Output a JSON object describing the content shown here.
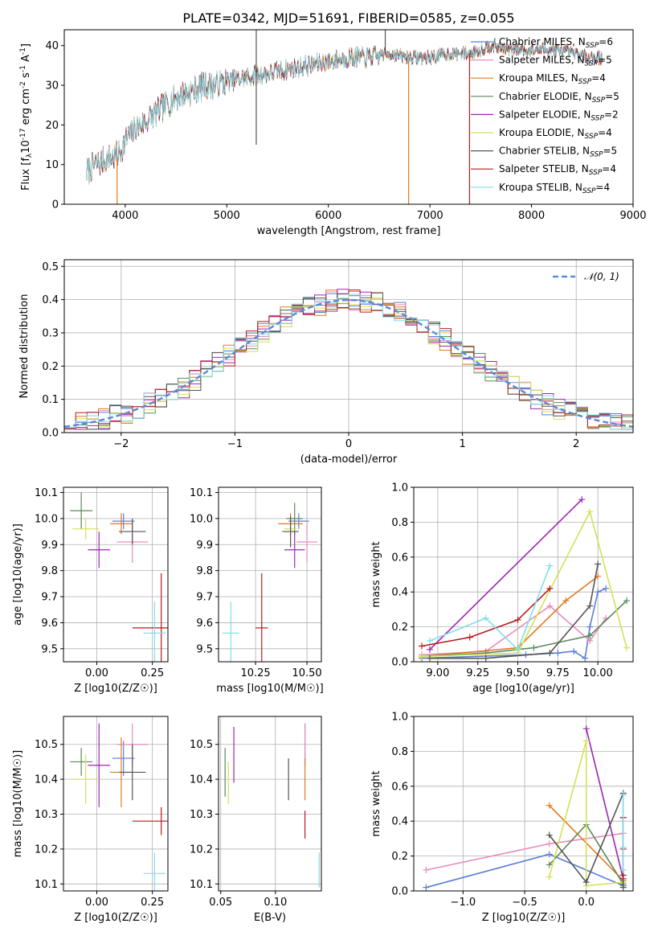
{
  "figure_title": "PLATE=0342, MJD=51691, FIBERID=0585, z=0.055",
  "colors": {
    "Chabrier MILES": "#5b7fd6",
    "Salpeter MILES": "#e98bbd",
    "Kroupa MILES": "#e07a22",
    "Chabrier ELODIE": "#5a8a5a",
    "Salpeter ELODIE": "#9c27b0",
    "Kroupa ELODIE": "#d4e157",
    "Chabrier STELIB": "#555555",
    "Salpeter STELIB": "#b71c1c",
    "Kroupa STELIB": "#80deea"
  },
  "chart_data": [
    {
      "id": "spectrum",
      "type": "line",
      "title": "PLATE=0342, MJD=51691, FIBERID=0585, z=0.055",
      "xlabel": "wavelength [Angstrom, rest frame]",
      "ylabel_parts": [
        "Flux [f",
        "λ",
        "10",
        "-17",
        " erg cm",
        "-2",
        " s",
        "-1",
        " A",
        "-1",
        "]"
      ],
      "xlim": [
        3400,
        9000
      ],
      "ylim": [
        0,
        44
      ],
      "xticks": [
        "4000",
        "5000",
        "6000",
        "7000",
        "8000",
        "9000"
      ],
      "yticks": [
        "0",
        "10",
        "20",
        "30",
        "40"
      ],
      "legend_position": "top-right",
      "legend": [
        {
          "name": "Chabrier MILES",
          "nssp": "6"
        },
        {
          "name": "Salpeter MILES",
          "nssp": "5"
        },
        {
          "name": "Kroupa MILES",
          "nssp": "4"
        },
        {
          "name": "Chabrier ELODIE",
          "nssp": "5"
        },
        {
          "name": "Salpeter ELODIE",
          "nssp": "2"
        },
        {
          "name": "Kroupa ELODIE",
          "nssp": "4"
        },
        {
          "name": "Chabrier STELIB",
          "nssp": "5"
        },
        {
          "name": "Salpeter STELIB",
          "nssp": "4"
        },
        {
          "name": "Kroupa STELIB",
          "nssp": "4"
        }
      ],
      "trend": {
        "x": [
          3620,
          3700,
          3800,
          3900,
          3950,
          4000,
          4100,
          4200,
          4300,
          4400,
          4500,
          4600,
          4700,
          4800,
          4900,
          5000,
          5200,
          5400,
          5600,
          5800,
          6000,
          6200,
          6400,
          6600,
          6800,
          7000,
          7200,
          7400,
          7600,
          7800,
          8000,
          8200,
          8400,
          8600,
          8700
        ],
        "y": [
          8,
          10,
          11,
          12,
          13,
          16,
          19,
          21,
          23,
          25,
          27,
          28,
          29,
          30,
          30,
          31,
          32,
          33,
          34,
          35,
          36,
          37,
          37,
          38,
          37,
          37,
          38,
          38,
          40,
          39,
          39,
          39,
          38,
          37,
          37
        ]
      },
      "spikes": [
        {
          "x": 3920,
          "y0": 0,
          "y1": 12,
          "series": "Kroupa MILES"
        },
        {
          "x": 5290,
          "y0": 15,
          "y1": 44,
          "series": "Chabrier STELIB"
        },
        {
          "x": 6560,
          "y0": 38,
          "y1": 44,
          "series": "Chabrier STELIB"
        },
        {
          "x": 6790,
          "y0": 0,
          "y1": 36,
          "series": "Kroupa MILES"
        },
        {
          "x": 7390,
          "y0": 0,
          "y1": 38,
          "series": "Salpeter STELIB"
        }
      ]
    },
    {
      "id": "residuals",
      "type": "line",
      "xlabel": "(data-model)/error",
      "ylabel": "Normed distribution",
      "xlim": [
        -2.5,
        2.5
      ],
      "ylim": [
        0,
        0.52
      ],
      "xticks": [
        "−2",
        "−1",
        "0",
        "1",
        "2"
      ],
      "yticks": [
        "0.0",
        "0.1",
        "0.2",
        "0.3",
        "0.4",
        "0.5"
      ],
      "legend_position": "top-right",
      "legend": [
        {
          "name": "𝒩(0, 1)"
        }
      ],
      "grid": true
    },
    {
      "id": "age_vs_Z",
      "type": "scatter",
      "xlabel": "Z [log10(Z/Z☉)]",
      "ylabel": "age [log10(age/yr)]",
      "xlim": [
        -0.15,
        0.32
      ],
      "ylim": [
        9.45,
        10.12
      ],
      "xticks": [
        "0.00",
        "0.25"
      ],
      "yticks": [
        "9.5",
        "9.6",
        "9.7",
        "9.8",
        "9.9",
        "10.0",
        "10.1"
      ],
      "grid": true,
      "points": [
        {
          "series": "Chabrier MILES",
          "x": 0.12,
          "y": 9.99,
          "xerr": 0.05,
          "yerr": 0.03
        },
        {
          "series": "Salpeter MILES",
          "x": 0.16,
          "y": 9.91,
          "xerr": 0.07,
          "yerr": 0.08
        },
        {
          "series": "Kroupa MILES",
          "x": 0.11,
          "y": 9.98,
          "xerr": 0.05,
          "yerr": 0.04
        },
        {
          "series": "Chabrier ELODIE",
          "x": -0.07,
          "y": 10.03,
          "xerr": 0.05,
          "yerr": 0.07
        },
        {
          "series": "Salpeter ELODIE",
          "x": 0.01,
          "y": 9.88,
          "xerr": 0.05,
          "yerr": 0.07
        },
        {
          "series": "Kroupa ELODIE",
          "x": -0.05,
          "y": 9.96,
          "xerr": 0.06,
          "yerr": 0.04
        },
        {
          "series": "Chabrier STELIB",
          "x": 0.16,
          "y": 9.95,
          "xerr": 0.06,
          "yerr": 0.05
        },
        {
          "series": "Salpeter STELIB",
          "x": 0.29,
          "y": 9.58,
          "xerr": 0.13,
          "yerr": 0.21
        },
        {
          "series": "Kroupa STELIB",
          "x": 0.26,
          "y": 9.56,
          "xerr": 0.05,
          "yerr": 0.12
        }
      ]
    },
    {
      "id": "age_vs_mass",
      "type": "scatter",
      "xlabel": "mass [log10(M/M☉)]",
      "xlim": [
        10.07,
        10.57
      ],
      "ylim": [
        9.45,
        10.12
      ],
      "xticks": [
        "10.25",
        "10.50"
      ],
      "yticks": [
        "9.5",
        "9.6",
        "9.7",
        "9.8",
        "9.9",
        "10.0",
        "10.1"
      ],
      "grid": true,
      "points": [
        {
          "series": "Chabrier MILES",
          "x": 10.46,
          "y": 9.99,
          "xerr": 0.05,
          "yerr": 0.03
        },
        {
          "series": "Salpeter MILES",
          "x": 10.5,
          "y": 9.91,
          "xerr": 0.05,
          "yerr": 0.08
        },
        {
          "series": "Kroupa MILES",
          "x": 10.42,
          "y": 9.98,
          "xerr": 0.06,
          "yerr": 0.04
        },
        {
          "series": "Chabrier ELODIE",
          "x": 10.44,
          "y": 10.0,
          "xerr": 0.04,
          "yerr": 0.06
        },
        {
          "series": "Salpeter ELODIE",
          "x": 10.44,
          "y": 9.88,
          "xerr": 0.05,
          "yerr": 0.07
        },
        {
          "series": "Kroupa ELODIE",
          "x": 10.42,
          "y": 9.96,
          "xerr": 0.03,
          "yerr": 0.05
        },
        {
          "series": "Chabrier STELIB",
          "x": 10.42,
          "y": 9.95,
          "xerr": 0.04,
          "yerr": 0.06
        },
        {
          "series": "Salpeter STELIB",
          "x": 10.28,
          "y": 9.58,
          "xerr": 0.03,
          "yerr": 0.21
        },
        {
          "series": "Kroupa STELIB",
          "x": 10.13,
          "y": 9.56,
          "xerr": 0.04,
          "yerr": 0.12
        }
      ]
    },
    {
      "id": "weight_vs_age",
      "type": "line",
      "xlabel": "age [log10(age/yr)]",
      "ylabel": "mass weight",
      "xlim": [
        8.85,
        10.22
      ],
      "ylim": [
        0,
        1
      ],
      "xticks": [
        "9.00",
        "9.25",
        "9.50",
        "9.75",
        "10.00"
      ],
      "yticks": [
        "0.0",
        "0.2",
        "0.4",
        "0.6",
        "0.8",
        "1.0"
      ],
      "grid": true,
      "series": [
        {
          "name": "Chabrier MILES",
          "x": [
            8.9,
            9.55,
            9.75,
            9.85,
            9.92,
            9.95,
            10.0,
            10.05
          ],
          "y": [
            0.02,
            0.04,
            0.05,
            0.06,
            0.02,
            0.2,
            0.4,
            0.42
          ]
        },
        {
          "name": "Salpeter MILES",
          "x": [
            8.9,
            9.3,
            9.7,
            9.95,
            10.05
          ],
          "y": [
            0.04,
            0.06,
            0.32,
            0.12,
            0.25
          ]
        },
        {
          "name": "Kroupa MILES",
          "x": [
            8.9,
            9.5,
            9.8,
            10.0
          ],
          "y": [
            0.03,
            0.08,
            0.35,
            0.49
          ]
        },
        {
          "name": "Chabrier ELODIE",
          "x": [
            8.9,
            9.3,
            9.6,
            9.95,
            10.18
          ],
          "y": [
            0.03,
            0.05,
            0.08,
            0.15,
            0.35
          ]
        },
        {
          "name": "Salpeter ELODIE",
          "x": [
            8.95,
            9.9
          ],
          "y": [
            0.07,
            0.93
          ]
        },
        {
          "name": "Kroupa ELODIE",
          "x": [
            8.9,
            9.5,
            9.95,
            10.18
          ],
          "y": [
            0.03,
            0.05,
            0.86,
            0.08
          ]
        },
        {
          "name": "Chabrier STELIB",
          "x": [
            8.95,
            9.3,
            9.7,
            9.95,
            10.0
          ],
          "y": [
            0.02,
            0.02,
            0.05,
            0.32,
            0.56
          ]
        },
        {
          "name": "Salpeter STELIB",
          "x": [
            8.9,
            9.2,
            9.5,
            9.7
          ],
          "y": [
            0.09,
            0.14,
            0.24,
            0.42
          ]
        },
        {
          "name": "Kroupa STELIB",
          "x": [
            8.95,
            9.3,
            9.5,
            9.7
          ],
          "y": [
            0.12,
            0.25,
            0.07,
            0.55
          ]
        }
      ]
    },
    {
      "id": "mass_vs_Z",
      "type": "scatter",
      "xlabel": "Z [log10(Z/Z☉)]",
      "ylabel": "mass [log10(M/M☉)]",
      "xlim": [
        -0.15,
        0.32
      ],
      "ylim": [
        10.08,
        10.58
      ],
      "xticks": [
        "0.00",
        "0.25"
      ],
      "yticks": [
        "10.1",
        "10.2",
        "10.3",
        "10.4",
        "10.5"
      ],
      "grid": true,
      "points": [
        {
          "series": "Chabrier MILES",
          "x": 0.12,
          "y": 10.46,
          "xerr": 0.05,
          "yerr": 0.05
        },
        {
          "series": "Salpeter MILES",
          "x": 0.16,
          "y": 10.5,
          "xerr": 0.07,
          "yerr": 0.06
        },
        {
          "series": "Kroupa MILES",
          "x": 0.11,
          "y": 10.42,
          "xerr": 0.05,
          "yerr": 0.1
        },
        {
          "series": "Chabrier ELODIE",
          "x": -0.07,
          "y": 10.45,
          "xerr": 0.05,
          "yerr": 0.04
        },
        {
          "series": "Salpeter ELODIE",
          "x": 0.01,
          "y": 10.44,
          "xerr": 0.05,
          "yerr": 0.12
        },
        {
          "series": "Kroupa ELODIE",
          "x": -0.05,
          "y": 10.4,
          "xerr": 0.06,
          "yerr": 0.07
        },
        {
          "series": "Chabrier STELIB",
          "x": 0.16,
          "y": 10.42,
          "xerr": 0.06,
          "yerr": 0.08
        },
        {
          "series": "Salpeter STELIB",
          "x": 0.29,
          "y": 10.28,
          "xerr": 0.13,
          "yerr": 0.04
        },
        {
          "series": "Kroupa STELIB",
          "x": 0.26,
          "y": 10.13,
          "xerr": 0.05,
          "yerr": 0.06
        }
      ]
    },
    {
      "id": "mass_vs_EBV",
      "type": "scatter",
      "xlabel": "E(B-V)",
      "xlim": [
        0.048,
        0.142
      ],
      "ylim": [
        10.08,
        10.58
      ],
      "xticks": [
        "0.05",
        "0.10"
      ],
      "yticks": [
        "10.1",
        "10.2",
        "10.3",
        "10.4",
        "10.5"
      ],
      "grid": true,
      "points": [
        {
          "series": "Chabrier MILES",
          "x": 0.127,
          "y": 10.5,
          "yerr": 0.06
        },
        {
          "series": "Salpeter MILES",
          "x": 0.127,
          "y": 10.5,
          "yerr": 0.06
        },
        {
          "series": "Kroupa MILES",
          "x": 0.127,
          "y": 10.4,
          "yerr": 0.06
        },
        {
          "series": "Chabrier ELODIE",
          "x": 0.054,
          "y": 10.42,
          "yerr": 0.07
        },
        {
          "series": "Salpeter ELODIE",
          "x": 0.062,
          "y": 10.47,
          "yerr": 0.08
        },
        {
          "series": "Kroupa ELODIE",
          "x": 0.057,
          "y": 10.39,
          "yerr": 0.06
        },
        {
          "series": "Chabrier STELIB",
          "x": 0.112,
          "y": 10.4,
          "yerr": 0.06
        },
        {
          "series": "Salpeter STELIB",
          "x": 0.127,
          "y": 10.27,
          "yerr": 0.04
        },
        {
          "series": "Kroupa STELIB",
          "x": 0.14,
          "y": 10.14,
          "yerr": 0.05
        }
      ]
    },
    {
      "id": "weight_vs_Z",
      "type": "line",
      "xlabel": "Z [log10(Z/Z☉)]",
      "ylabel": "mass weight",
      "xlim": [
        -1.4,
        0.38
      ],
      "ylim": [
        0,
        1
      ],
      "xticks": [
        "−1.0",
        "−0.5",
        "0.0"
      ],
      "yticks": [
        "0.0",
        "0.2",
        "0.4",
        "0.6",
        "0.8",
        "1.0"
      ],
      "grid": true,
      "series": [
        {
          "name": "Chabrier MILES",
          "x": [
            -1.3,
            -0.3,
            0.3,
            0.3
          ],
          "y": [
            0.02,
            0.21,
            0.03,
            0.42
          ]
        },
        {
          "name": "Salpeter MILES",
          "x": [
            -1.3,
            -0.3,
            0.3
          ],
          "y": [
            0.12,
            0.27,
            0.33
          ]
        },
        {
          "name": "Kroupa MILES",
          "x": [
            -0.3,
            0.3
          ],
          "y": [
            0.49,
            0.06
          ]
        },
        {
          "name": "Chabrier ELODIE",
          "x": [
            -0.3,
            0.0,
            0.3
          ],
          "y": [
            0.15,
            0.38,
            0.04
          ]
        },
        {
          "name": "Salpeter ELODIE",
          "x": [
            0.0,
            0.3
          ],
          "y": [
            0.93,
            0.07
          ]
        },
        {
          "name": "Kroupa ELODIE",
          "x": [
            -0.3,
            0.0,
            0.0,
            0.3
          ],
          "y": [
            0.08,
            0.86,
            0.03,
            0.05
          ]
        },
        {
          "name": "Chabrier STELIB",
          "x": [
            -0.3,
            0.0,
            0.3,
            0.3
          ],
          "y": [
            0.32,
            0.05,
            0.56,
            0.02
          ]
        },
        {
          "name": "Salpeter STELIB",
          "x": [
            0.3,
            0.3,
            0.3
          ],
          "y": [
            0.09,
            0.24,
            0.42
          ]
        },
        {
          "name": "Kroupa STELIB",
          "x": [
            0.3,
            0.3,
            0.3
          ],
          "y": [
            0.12,
            0.25,
            0.55
          ]
        }
      ]
    }
  ]
}
